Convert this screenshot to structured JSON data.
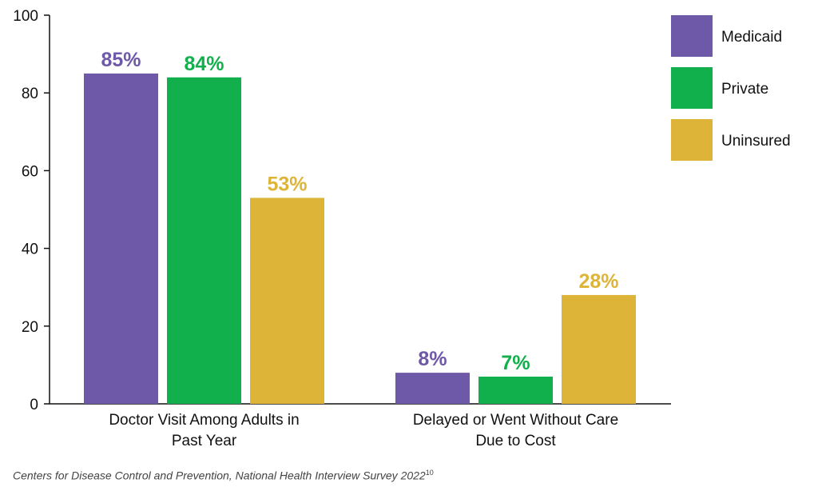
{
  "chart_data": {
    "type": "bar",
    "categories": [
      [
        "Doctor Visit Among Adults in",
        "Past Year"
      ],
      [
        "Delayed or Went Without Care",
        "Due to Cost"
      ]
    ],
    "series": [
      {
        "name": "Medicaid",
        "values": [
          85,
          8
        ],
        "labels": [
          "85%",
          "8%"
        ],
        "color": "#6e58a8"
      },
      {
        "name": "Private",
        "values": [
          84,
          7
        ],
        "labels": [
          "84%",
          "7%"
        ],
        "color": "#12b04c"
      },
      {
        "name": "Uninsured",
        "values": [
          53,
          28
        ],
        "labels": [
          "53%",
          "28%"
        ],
        "color": "#deb438"
      }
    ],
    "ylim": [
      0,
      100
    ],
    "yticks": [
      0,
      20,
      40,
      60,
      80,
      100
    ],
    "legend_position": "right",
    "grid": false
  },
  "source": {
    "text": "Centers for Disease Control and Prevention, National Health Interview Survey 2022",
    "footnote": "10"
  }
}
